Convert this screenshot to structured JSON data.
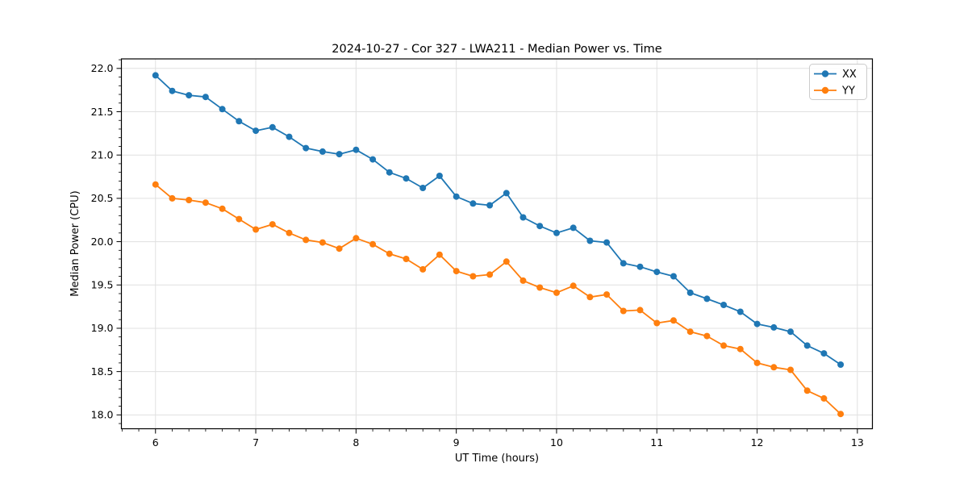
{
  "chart_data": {
    "type": "line",
    "title": "2024-10-27 - Cor 327 - LWA211 - Median Power vs. Time",
    "xlabel": "UT Time (hours)",
    "ylabel": "Median Power (CPU)",
    "xlim": [
      5.66,
      13.15
    ],
    "ylim": [
      17.84,
      22.11
    ],
    "x_ticks": [
      6,
      7,
      8,
      9,
      10,
      11,
      12,
      13
    ],
    "y_ticks": [
      18.0,
      18.5,
      19.0,
      19.5,
      20.0,
      20.5,
      21.0,
      21.5,
      22.0
    ],
    "x_minor_step": 0.16667,
    "y_minor_step": 0.1,
    "grid": "major",
    "grid_color": "#e0e0e0",
    "legend_position": "upper right",
    "x": [
      6,
      6.1667,
      6.3333,
      6.5,
      6.6667,
      6.8333,
      7,
      7.1667,
      7.3333,
      7.5,
      7.6667,
      7.8333,
      8,
      8.1667,
      8.3333,
      8.5,
      8.6667,
      8.8333,
      9,
      9.1667,
      9.3333,
      9.5,
      9.6667,
      9.8333,
      10,
      10.1667,
      10.3333,
      10.5,
      10.6667,
      10.8333,
      11,
      11.1667,
      11.3333,
      11.5,
      11.6667,
      11.8333,
      12,
      12.1667,
      12.3333,
      12.5,
      12.6667,
      12.8333
    ],
    "series": [
      {
        "name": "XX",
        "color": "#1f77b4",
        "values": [
          21.92,
          21.74,
          21.69,
          21.67,
          21.53,
          21.39,
          21.28,
          21.32,
          21.21,
          21.08,
          21.04,
          21.01,
          21.06,
          20.95,
          20.8,
          20.73,
          20.62,
          20.76,
          20.52,
          20.44,
          20.42,
          20.56,
          20.28,
          20.18,
          20.1,
          20.16,
          20.01,
          19.99,
          19.75,
          19.71,
          19.65,
          19.6,
          19.41,
          19.34,
          19.27,
          19.19,
          19.05,
          19.01,
          18.96,
          18.8,
          18.71,
          18.58
        ]
      },
      {
        "name": "YY",
        "color": "#ff7f0e",
        "values": [
          20.66,
          20.5,
          20.48,
          20.45,
          20.38,
          20.26,
          20.14,
          20.2,
          20.1,
          20.02,
          19.99,
          19.92,
          20.04,
          19.97,
          19.86,
          19.8,
          19.68,
          19.85,
          19.66,
          19.6,
          19.62,
          19.77,
          19.55,
          19.47,
          19.41,
          19.49,
          19.36,
          19.39,
          19.2,
          19.21,
          19.06,
          19.09,
          18.96,
          18.91,
          18.8,
          18.76,
          18.6,
          18.55,
          18.52,
          18.28,
          18.19,
          18.01
        ]
      }
    ]
  }
}
